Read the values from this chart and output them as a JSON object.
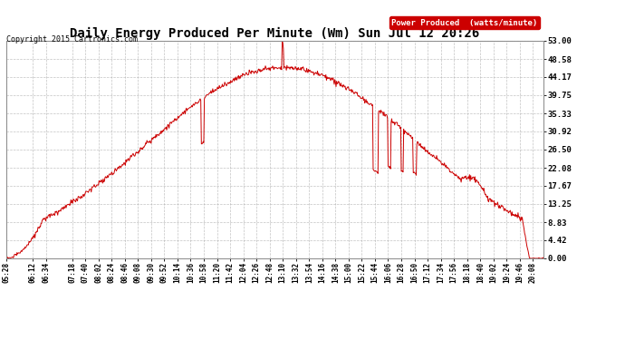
{
  "title": "Daily Energy Produced Per Minute (Wm) Sun Jul 12 20:26",
  "copyright": "Copyright 2015 Cartronics.com",
  "legend_label": "Power Produced  (watts/minute)",
  "legend_bg": "#cc0000",
  "legend_fg": "#ffffff",
  "line_color": "#cc0000",
  "bg_color": "#ffffff",
  "grid_color": "#aaaaaa",
  "yticks": [
    0.0,
    4.42,
    8.83,
    13.25,
    17.67,
    22.08,
    26.5,
    30.92,
    35.33,
    39.75,
    44.17,
    48.58,
    53.0
  ],
  "ymax": 53.0,
  "ymin": 0.0,
  "xtick_labels": [
    "05:28",
    "06:12",
    "06:34",
    "07:18",
    "07:40",
    "08:02",
    "08:24",
    "08:46",
    "09:08",
    "09:30",
    "09:52",
    "10:14",
    "10:36",
    "10:58",
    "11:20",
    "11:42",
    "12:04",
    "12:26",
    "12:48",
    "13:10",
    "13:32",
    "13:54",
    "14:16",
    "14:38",
    "15:00",
    "15:22",
    "15:44",
    "16:06",
    "16:28",
    "16:50",
    "17:12",
    "17:34",
    "17:56",
    "18:18",
    "18:40",
    "19:02",
    "19:24",
    "19:46",
    "20:08"
  ],
  "title_fontsize": 10,
  "copyright_fontsize": 6,
  "tick_fontsize": 5.5,
  "ytick_fontsize": 6.5
}
